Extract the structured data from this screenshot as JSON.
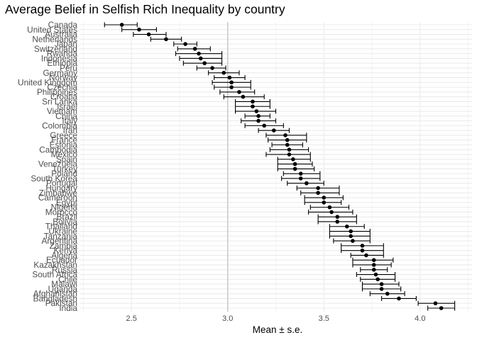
{
  "chart_data": {
    "type": "scatter",
    "title": "Average Belief in Selfish Rich Inequality by country",
    "xlabel": "Mean ± s.e.",
    "ylabel": "",
    "xlim": [
      2.23,
      4.27
    ],
    "x_ticks": [
      "2.5",
      "3.0",
      "3.5",
      "4.0"
    ],
    "reference_line_x": 3.0,
    "grid": true,
    "legend": "none",
    "colors": {
      "point": "#000000",
      "grid": "#ebebeb",
      "reference_line": "#c8c8c8"
    },
    "series": [
      {
        "points": [
          {
            "country": "Canada",
            "mean": 2.45,
            "lo": 2.36,
            "hi": 2.53
          },
          {
            "country": "United States",
            "mean": 2.54,
            "lo": 2.45,
            "hi": 2.63
          },
          {
            "country": "Australia",
            "mean": 2.59,
            "lo": 2.51,
            "hi": 2.68
          },
          {
            "country": "Netherlands",
            "mean": 2.68,
            "lo": 2.6,
            "hi": 2.76
          },
          {
            "country": "Japan",
            "mean": 2.78,
            "lo": 2.72,
            "hi": 2.84
          },
          {
            "country": "Switzerland",
            "mean": 2.83,
            "lo": 2.74,
            "hi": 2.91
          },
          {
            "country": "Rwanda",
            "mean": 2.85,
            "lo": 2.73,
            "hi": 2.97
          },
          {
            "country": "Indonesia",
            "mean": 2.86,
            "lo": 2.75,
            "hi": 2.97
          },
          {
            "country": "Ethiopia",
            "mean": 2.88,
            "lo": 2.77,
            "hi": 2.97
          },
          {
            "country": "Peru",
            "mean": 2.92,
            "lo": 2.84,
            "hi": 2.99
          },
          {
            "country": "Germany",
            "mean": 2.98,
            "lo": 2.9,
            "hi": 3.06
          },
          {
            "country": "Norway",
            "mean": 3.01,
            "lo": 2.93,
            "hi": 3.09
          },
          {
            "country": "United Kingdom",
            "mean": 3.02,
            "lo": 2.92,
            "hi": 3.12
          },
          {
            "country": "Czechia",
            "mean": 3.02,
            "lo": 2.93,
            "hi": 3.12
          },
          {
            "country": "Philippines",
            "mean": 3.06,
            "lo": 2.96,
            "hi": 3.14
          },
          {
            "country": "Croatia",
            "mean": 3.08,
            "lo": 2.98,
            "hi": 3.19
          },
          {
            "country": "Sri Lanka",
            "mean": 3.13,
            "lo": 3.04,
            "hi": 3.22
          },
          {
            "country": "Israel",
            "mean": 3.13,
            "lo": 3.04,
            "hi": 3.22
          },
          {
            "country": "Vietnam",
            "mean": 3.15,
            "lo": 3.04,
            "hi": 3.25
          },
          {
            "country": "China",
            "mean": 3.16,
            "lo": 3.09,
            "hi": 3.22
          },
          {
            "country": "Italy",
            "mean": 3.16,
            "lo": 3.07,
            "hi": 3.25
          },
          {
            "country": "Colombia",
            "mean": 3.19,
            "lo": 3.09,
            "hi": 3.29
          },
          {
            "country": "Iran",
            "mean": 3.24,
            "lo": 3.16,
            "hi": 3.32
          },
          {
            "country": "Greece",
            "mean": 3.3,
            "lo": 3.2,
            "hi": 3.41
          },
          {
            "country": "France",
            "mean": 3.31,
            "lo": 3.21,
            "hi": 3.41
          },
          {
            "country": "Estonia",
            "mean": 3.31,
            "lo": 3.23,
            "hi": 3.39
          },
          {
            "country": "Cambodia",
            "mean": 3.32,
            "lo": 3.22,
            "hi": 3.42
          },
          {
            "country": "Mexico",
            "mean": 3.32,
            "lo": 3.2,
            "hi": 3.43
          },
          {
            "country": "Spain",
            "mean": 3.34,
            "lo": 3.26,
            "hi": 3.43
          },
          {
            "country": "Venezuela",
            "mean": 3.35,
            "lo": 3.26,
            "hi": 3.44
          },
          {
            "country": "Turkey",
            "mean": 3.35,
            "lo": 3.26,
            "hi": 3.45
          },
          {
            "country": "Poland",
            "mean": 3.38,
            "lo": 3.29,
            "hi": 3.48
          },
          {
            "country": "South Korea",
            "mean": 3.38,
            "lo": 3.28,
            "hi": 3.48
          },
          {
            "country": "Portugal",
            "mean": 3.41,
            "lo": 3.31,
            "hi": 3.5
          },
          {
            "country": "Hungary",
            "mean": 3.47,
            "lo": 3.36,
            "hi": 3.58
          },
          {
            "country": "Zimbabwe",
            "mean": 3.47,
            "lo": 3.38,
            "hi": 3.58
          },
          {
            "country": "Cameroon",
            "mean": 3.5,
            "lo": 3.4,
            "hi": 3.6
          },
          {
            "country": "Egypt",
            "mean": 3.5,
            "lo": 3.4,
            "hi": 3.59
          },
          {
            "country": "Nigeria",
            "mean": 3.53,
            "lo": 3.43,
            "hi": 3.63
          },
          {
            "country": "Morocco",
            "mean": 3.54,
            "lo": 3.42,
            "hi": 3.65
          },
          {
            "country": "Brazil",
            "mean": 3.57,
            "lo": 3.47,
            "hi": 3.67
          },
          {
            "country": "Bolivia",
            "mean": 3.57,
            "lo": 3.47,
            "hi": 3.67
          },
          {
            "country": "Thailand",
            "mean": 3.62,
            "lo": 3.53,
            "hi": 3.71
          },
          {
            "country": "Ukraine",
            "mean": 3.64,
            "lo": 3.53,
            "hi": 3.74
          },
          {
            "country": "Tanzania",
            "mean": 3.64,
            "lo": 3.53,
            "hi": 3.74
          },
          {
            "country": "Argentina",
            "mean": 3.65,
            "lo": 3.55,
            "hi": 3.74
          },
          {
            "country": "Zambia",
            "mean": 3.7,
            "lo": 3.59,
            "hi": 3.81
          },
          {
            "country": "Kenya",
            "mean": 3.7,
            "lo": 3.59,
            "hi": 3.81
          },
          {
            "country": "Algeria",
            "mean": 3.72,
            "lo": 3.64,
            "hi": 3.81
          },
          {
            "country": "Ecuador",
            "mean": 3.76,
            "lo": 3.65,
            "hi": 3.86
          },
          {
            "country": "Kazakhstan",
            "mean": 3.76,
            "lo": 3.65,
            "hi": 3.85
          },
          {
            "country": "Russia",
            "mean": 3.76,
            "lo": 3.69,
            "hi": 3.83
          },
          {
            "country": "South Africa",
            "mean": 3.77,
            "lo": 3.67,
            "hi": 3.87
          },
          {
            "country": "Chile",
            "mean": 3.78,
            "lo": 3.69,
            "hi": 3.87
          },
          {
            "country": "Malawi",
            "mean": 3.8,
            "lo": 3.7,
            "hi": 3.89
          },
          {
            "country": "Uganda",
            "mean": 3.8,
            "lo": 3.7,
            "hi": 3.9
          },
          {
            "country": "Afghanistan",
            "mean": 3.83,
            "lo": 3.74,
            "hi": 3.92
          },
          {
            "country": "Bangladesh",
            "mean": 3.89,
            "lo": 3.8,
            "hi": 3.98
          },
          {
            "country": "Pakistan",
            "mean": 4.08,
            "lo": 3.99,
            "hi": 4.18
          },
          {
            "country": "India",
            "mean": 4.11,
            "lo": 4.04,
            "hi": 4.18
          }
        ]
      }
    ]
  }
}
